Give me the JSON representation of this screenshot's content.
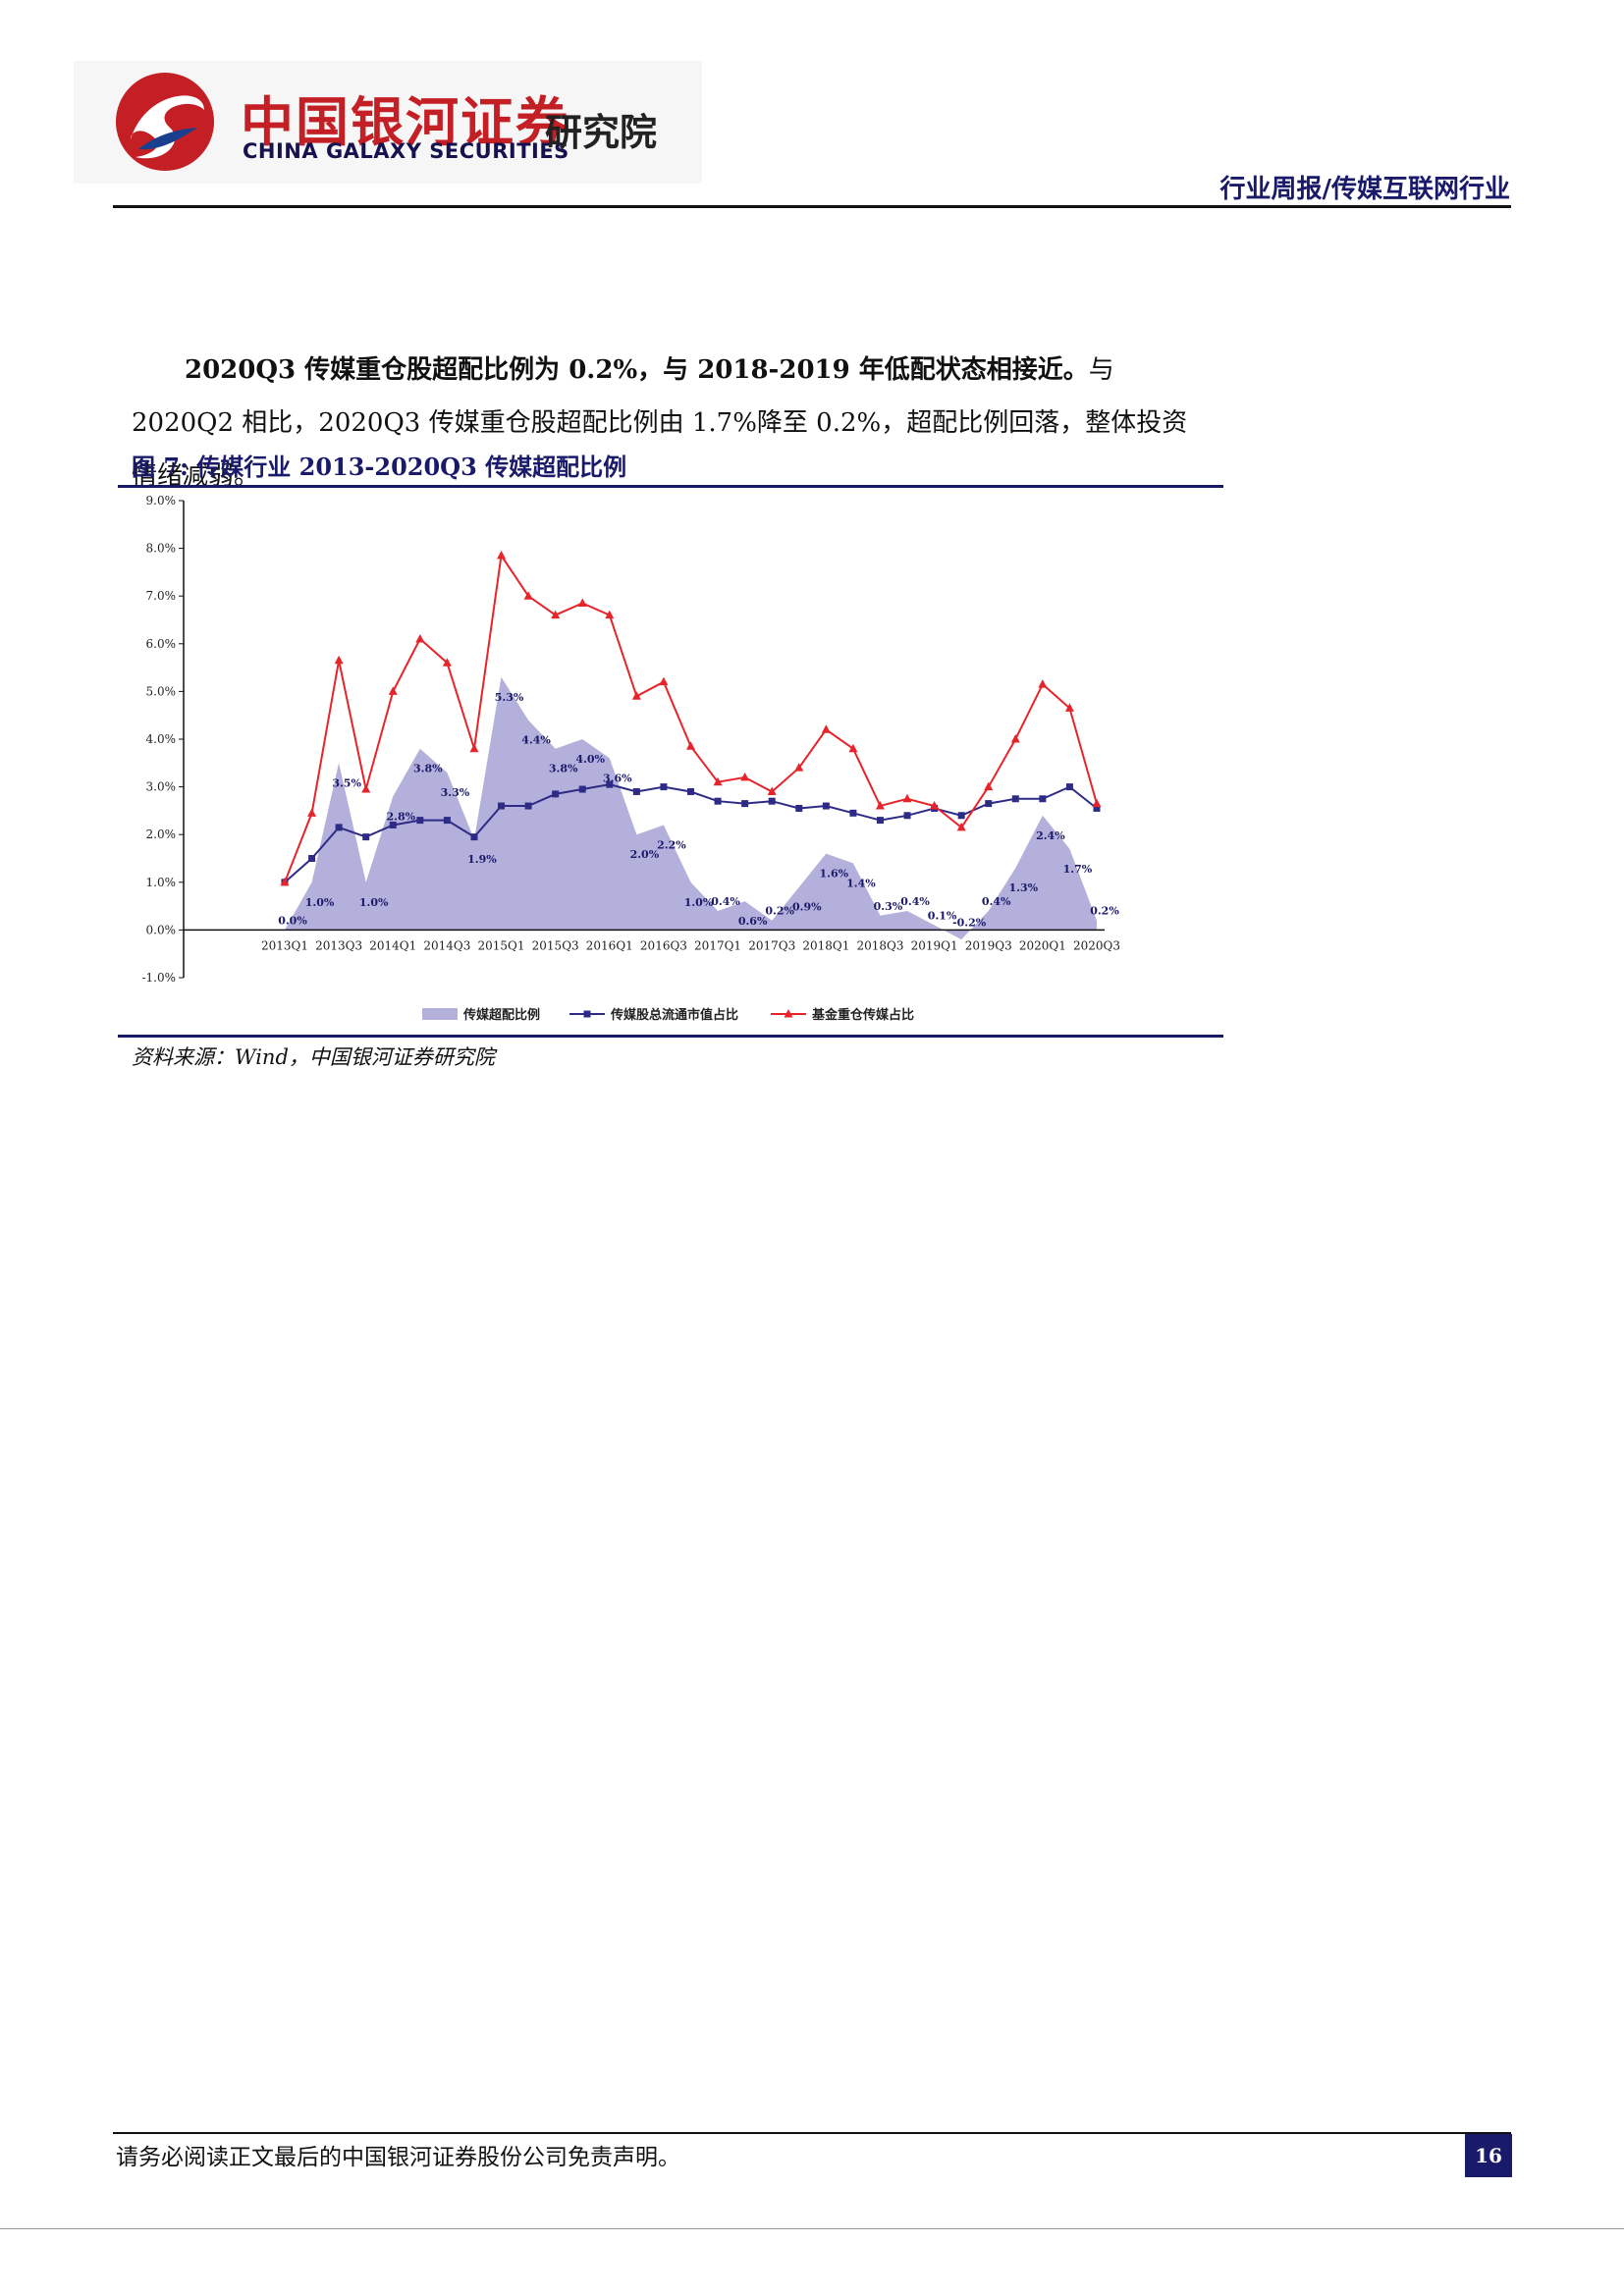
{
  "header": {
    "brand_cn": "中国银河证券",
    "brand_en": "CHINA GALAXY SECURITIES",
    "institute": "研究院",
    "report_type": "行业周报/传媒互联网行业"
  },
  "body": {
    "lead": "2020Q3 传媒重仓股超配比例为 0.2%，与 2018-2019 年低配状态相接近。",
    "rest": "与 2020Q2 相比，2020Q3 传媒重仓股超配比例由 1.7%降至 0.2%，超配比例回落，整体投资情绪减弱。"
  },
  "figure": {
    "title": "图 7: 传媒行业 2013-2020Q3 传媒超配比例",
    "source": "资料来源：Wind，中国银河证券研究院"
  },
  "chart_data": {
    "type": "line",
    "title": "",
    "xlabel": "",
    "ylabel": "",
    "ylim": [
      -1.0,
      9.0
    ],
    "yticks": [
      "9.0%",
      "8.0%",
      "7.0%",
      "6.0%",
      "5.0%",
      "4.0%",
      "3.0%",
      "2.0%",
      "1.0%",
      "0.0%",
      "-1.0%"
    ],
    "categories": [
      "2013Q1",
      "2013Q2",
      "2013Q3",
      "2013Q4",
      "2014Q1",
      "2014Q2",
      "2014Q3",
      "2014Q4",
      "2015Q1",
      "2015Q2",
      "2015Q3",
      "2015Q4",
      "2016Q1",
      "2016Q2",
      "2016Q3",
      "2016Q4",
      "2017Q1",
      "2017Q2",
      "2017Q3",
      "2017Q4",
      "2018Q1",
      "2018Q2",
      "2018Q3",
      "2018Q4",
      "2019Q1",
      "2019Q2",
      "2019Q3",
      "2019Q4",
      "2020Q1",
      "2020Q2",
      "2020Q3"
    ],
    "xtick_labels": [
      "2013Q1",
      "2013Q3",
      "2014Q1",
      "2014Q3",
      "2015Q1",
      "2015Q3",
      "2016Q1",
      "2016Q3",
      "2017Q1",
      "2017Q3",
      "2018Q1",
      "2018Q3",
      "2019Q1",
      "2019Q3",
      "2020Q1",
      "2020Q3"
    ],
    "series": [
      {
        "name": "传媒超配比例",
        "kind": "area",
        "color": "#b3b0db",
        "values": [
          0.0,
          1.0,
          3.5,
          1.0,
          2.8,
          3.8,
          3.3,
          1.9,
          5.3,
          4.4,
          3.8,
          4.0,
          3.6,
          2.0,
          2.2,
          1.0,
          0.4,
          0.6,
          0.2,
          0.9,
          1.6,
          1.4,
          0.3,
          0.4,
          0.1,
          -0.2,
          0.4,
          1.3,
          2.4,
          1.7,
          0.2
        ]
      },
      {
        "name": "传媒股总流通市值占比",
        "kind": "line",
        "color": "#2e2b87",
        "values": [
          1.0,
          1.5,
          2.15,
          1.95,
          2.2,
          2.3,
          2.3,
          1.95,
          2.6,
          2.6,
          2.85,
          2.95,
          3.05,
          2.9,
          3.0,
          2.9,
          2.7,
          2.65,
          2.7,
          2.55,
          2.6,
          2.45,
          2.3,
          2.4,
          2.55,
          2.4,
          2.65,
          2.75,
          2.75,
          3.0,
          2.55
        ]
      },
      {
        "name": "基金重仓传媒占比",
        "kind": "line",
        "color": "#e8242b",
        "values": [
          1.0,
          2.45,
          5.65,
          2.95,
          5.0,
          6.1,
          5.6,
          3.8,
          7.85,
          7.0,
          6.6,
          6.85,
          6.6,
          4.9,
          5.2,
          3.85,
          3.1,
          3.2,
          2.9,
          3.4,
          4.2,
          3.8,
          2.6,
          2.75,
          2.6,
          2.15,
          3.0,
          4.0,
          5.15,
          4.65,
          2.65
        ]
      }
    ],
    "data_labels": [
      "0.0%",
      "1.0%",
      "3.5%",
      "1.0%",
      "2.8%",
      "3.8%",
      "3.3%",
      "1.9%",
      "5.3%",
      "4.4%",
      "3.8%",
      "4.0%",
      "3.6%",
      "2.0%",
      "2.2%",
      "1.0%",
      "0.4%",
      "0.6%",
      "0.2%",
      "0.9%",
      "1.6%",
      "1.4%",
      "0.3%",
      "0.4%",
      "0.1%",
      "-0.2%",
      "0.4%",
      "1.3%",
      "2.4%",
      "1.7%",
      "0.2%"
    ],
    "legend": "bottom",
    "grid": false
  },
  "footer": {
    "disclaimer": "请务必阅读正文最后的中国银河证券股份公司免责声明。",
    "page_number": "16"
  }
}
